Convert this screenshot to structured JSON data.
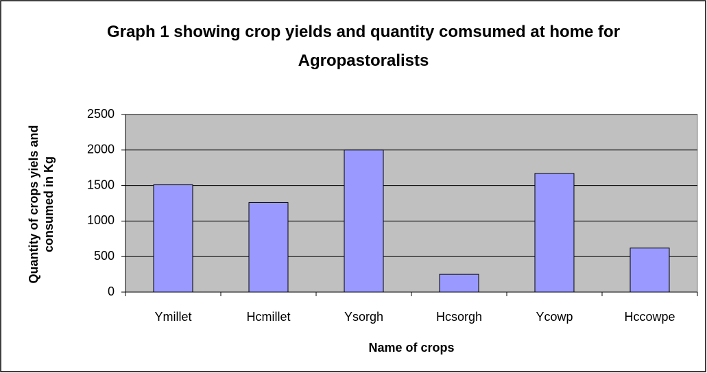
{
  "chart_data": {
    "type": "bar",
    "title": "Graph 1 showing crop yields and quantity comsumed at home for Agropastoralists",
    "x_label": "Name of crops",
    "y_label": "Quantity of crops yiels and consumed in Kg",
    "categories": [
      "Ymillet",
      "Hcmillet",
      "Ysorgh",
      "Hcsorgh",
      "Ycowp",
      "Hccowpe"
    ],
    "values": [
      1510,
      1260,
      2000,
      250,
      1670,
      620
    ],
    "color": "#9999ff",
    "ylim": [
      0,
      2500
    ],
    "yticks": [
      0,
      500,
      1000,
      1500,
      2000,
      2500
    ],
    "grid": true
  }
}
